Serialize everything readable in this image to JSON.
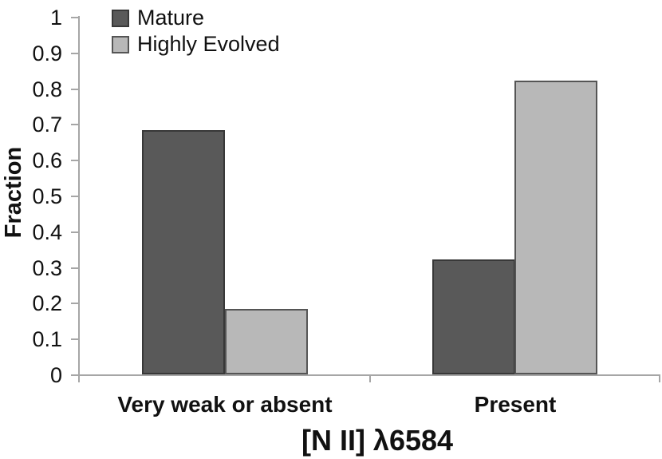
{
  "chart_data": {
    "type": "bar",
    "title": "",
    "categories": [
      "Very weak or absent",
      "Present"
    ],
    "series": [
      {
        "name": "Mature",
        "values": [
          0.68,
          0.32
        ],
        "fill": "#595959",
        "border": "#383838"
      },
      {
        "name": "Highly Evolved",
        "values": [
          0.18,
          0.82
        ],
        "fill": "#b8b8b8",
        "border": "#555555"
      }
    ],
    "xlabel": "[N II] λ6584",
    "ylabel": "Fraction",
    "ylim": [
      0,
      1
    ],
    "ytick_step": 0.1,
    "ytick_labels": [
      "0",
      "0.1",
      "0.2",
      "0.3",
      "0.4",
      "0.5",
      "0.6",
      "0.7",
      "0.8",
      "0.9",
      "1"
    ],
    "legend_position": "top-left",
    "grid": false
  },
  "colors": {
    "background": "#ffffff",
    "axis": "#a6a6a6",
    "text": "#111111"
  }
}
